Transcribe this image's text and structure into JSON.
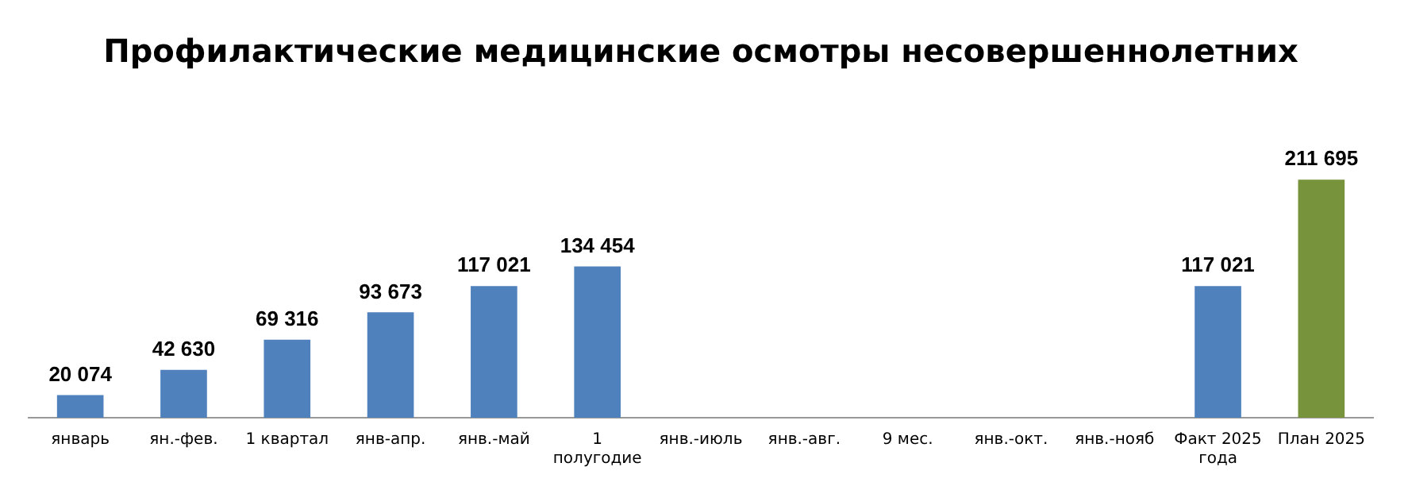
{
  "chart_data": {
    "type": "bar",
    "title": "Профилактические медицинские осмотры несовершеннолетних",
    "categories": [
      "январь",
      "ян.-фев.",
      "1 квартал",
      "янв-апр.",
      "янв.-май",
      "1 полугодие",
      "янв.-июль",
      "янв.-авг.",
      "9 мес.",
      "янв.-окт.",
      "янв.-нояб",
      "Факт 2025 года",
      "План 2025"
    ],
    "values": [
      20074,
      42630,
      69316,
      93673,
      117021,
      134454,
      null,
      null,
      null,
      null,
      null,
      117021,
      211695
    ],
    "value_labels": [
      "20 074",
      "42 630",
      "69 316",
      "93 673",
      "117 021",
      "134 454",
      null,
      null,
      null,
      null,
      null,
      "117 021",
      "211 695"
    ],
    "colors": [
      "#4f81bd",
      "#4f81bd",
      "#4f81bd",
      "#4f81bd",
      "#4f81bd",
      "#4f81bd",
      "#4f81bd",
      "#4f81bd",
      "#4f81bd",
      "#4f81bd",
      "#4f81bd",
      "#4f81bd",
      "#77933c"
    ],
    "grid": false,
    "legend": false
  }
}
